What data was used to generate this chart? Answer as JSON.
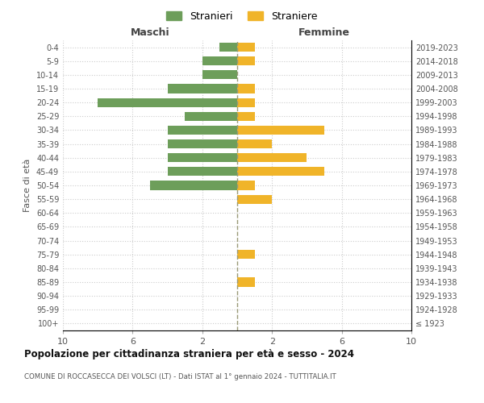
{
  "age_groups": [
    "100+",
    "95-99",
    "90-94",
    "85-89",
    "80-84",
    "75-79",
    "70-74",
    "65-69",
    "60-64",
    "55-59",
    "50-54",
    "45-49",
    "40-44",
    "35-39",
    "30-34",
    "25-29",
    "20-24",
    "15-19",
    "10-14",
    "5-9",
    "0-4"
  ],
  "birth_years": [
    "≤ 1923",
    "1924-1928",
    "1929-1933",
    "1934-1938",
    "1939-1943",
    "1944-1948",
    "1949-1953",
    "1954-1958",
    "1959-1963",
    "1964-1968",
    "1969-1973",
    "1974-1978",
    "1979-1983",
    "1984-1988",
    "1989-1993",
    "1994-1998",
    "1999-2003",
    "2004-2008",
    "2009-2013",
    "2014-2018",
    "2019-2023"
  ],
  "maschi": [
    0,
    0,
    0,
    0,
    0,
    0,
    0,
    0,
    0,
    0,
    5,
    4,
    4,
    4,
    4,
    3,
    8,
    4,
    2,
    2,
    1
  ],
  "femmine": [
    0,
    0,
    0,
    1,
    0,
    1,
    0,
    0,
    0,
    2,
    1,
    5,
    4,
    2,
    5,
    1,
    1,
    1,
    0,
    1,
    1
  ],
  "color_maschi": "#6d9e5a",
  "color_femmine": "#f0b429",
  "title": "Popolazione per cittadinanza straniera per età e sesso - 2024",
  "subtitle": "COMUNE DI ROCCASECCA DEI VOLSCI (LT) - Dati ISTAT al 1° gennaio 2024 - TUTTITALIA.IT",
  "ylabel_left": "Fasce di età",
  "xlabel_maschi": "Maschi",
  "xlabel_femmine": "Femmine",
  "legend_maschi": "Stranieri",
  "legend_femmine": "Straniere",
  "xlim": 10,
  "background_color": "#ffffff",
  "grid_color": "#cccccc"
}
